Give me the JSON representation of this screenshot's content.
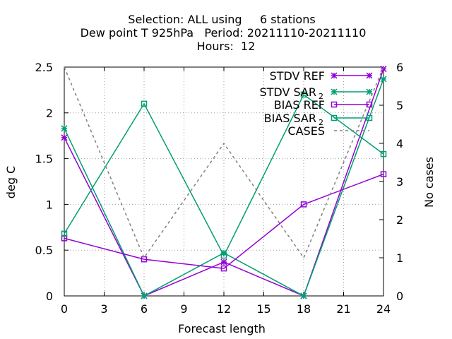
{
  "chart_data": {
    "type": "line",
    "title_lines": [
      "Selection: ALL using     6 stations",
      "Dew point T 925hPa   Period: 20211110-20211110",
      "Hours:  12"
    ],
    "xlabel": "Forecast length",
    "ylabel": "deg C",
    "y2label": "No cases",
    "x": [
      0,
      6,
      12,
      18,
      24
    ],
    "xlim": [
      0,
      24
    ],
    "xticks": [
      0,
      3,
      6,
      9,
      12,
      15,
      18,
      21,
      24
    ],
    "ylim": [
      0,
      2.5
    ],
    "yticks": [
      0,
      0.5,
      1,
      1.5,
      2,
      2.5
    ],
    "y2lim": [
      0,
      6
    ],
    "y2ticks": [
      0,
      1,
      2,
      3,
      4,
      5,
      6
    ],
    "grid": true,
    "legend_position": "top-right",
    "series": [
      {
        "name": "STDV REF",
        "name_sub": "",
        "axis": "y",
        "color": "#9400d3",
        "marker": "star",
        "dash": false,
        "values": [
          1.73,
          0.0,
          0.37,
          0.0,
          2.48
        ]
      },
      {
        "name": "STDV SAR",
        "name_sub": "2",
        "axis": "y",
        "color": "#009e73",
        "marker": "star",
        "dash": false,
        "values": [
          1.83,
          0.0,
          0.47,
          0.0,
          2.37
        ]
      },
      {
        "name": "BIAS REF",
        "name_sub": "",
        "axis": "y",
        "color": "#9400d3",
        "marker": "square",
        "dash": false,
        "values": [
          0.63,
          0.4,
          0.3,
          1.0,
          1.33
        ]
      },
      {
        "name": "BIAS SAR",
        "name_sub": "2",
        "axis": "y",
        "color": "#009e73",
        "marker": "square",
        "dash": false,
        "values": [
          0.68,
          2.1,
          0.44,
          2.2,
          1.55
        ]
      },
      {
        "name": "CASES",
        "name_sub": "",
        "axis": "y2",
        "color": "#808080",
        "marker": "none",
        "dash": true,
        "values": [
          6,
          1,
          4,
          1,
          6
        ]
      }
    ]
  }
}
